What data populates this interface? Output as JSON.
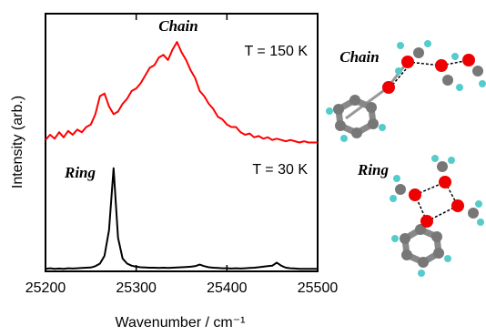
{
  "chart_data": {
    "type": "line",
    "x": [
      25200,
      25205,
      25210,
      25215,
      25220,
      25225,
      25230,
      25235,
      25240,
      25245,
      25250,
      25255,
      25260,
      25265,
      25270,
      25275,
      25280,
      25285,
      25290,
      25295,
      25300,
      25305,
      25310,
      25315,
      25320,
      25325,
      25330,
      25335,
      25340,
      25345,
      25350,
      25355,
      25360,
      25365,
      25370,
      25375,
      25380,
      25385,
      25390,
      25395,
      25400,
      25405,
      25410,
      25415,
      25420,
      25425,
      25430,
      25435,
      25440,
      25445,
      25450,
      25455,
      25460,
      25465,
      25470,
      25475,
      25480,
      25485,
      25490,
      25495,
      25500
    ],
    "series": [
      {
        "color": "#ff0000",
        "values": [
          5.1,
          5.3,
          5.15,
          5.4,
          5.2,
          5.45,
          5.3,
          5.5,
          5.4,
          5.6,
          5.7,
          6.1,
          6.8,
          6.9,
          6.4,
          6.1,
          6.2,
          6.5,
          6.7,
          7.0,
          7.1,
          7.3,
          7.6,
          7.9,
          8.0,
          8.3,
          8.4,
          8.2,
          8.6,
          8.9,
          8.5,
          8.2,
          7.8,
          7.5,
          7.0,
          6.8,
          6.5,
          6.3,
          6.0,
          5.9,
          5.7,
          5.6,
          5.6,
          5.4,
          5.3,
          5.35,
          5.2,
          5.25,
          5.15,
          5.2,
          5.1,
          5.15,
          5.1,
          5.05,
          5.1,
          5.05,
          5.0,
          5.05,
          5.0,
          5.0,
          5.0
        ]
      },
      {
        "color": "#000000",
        "values": [
          0.1,
          0.12,
          0.1,
          0.11,
          0.1,
          0.12,
          0.11,
          0.12,
          0.13,
          0.14,
          0.15,
          0.2,
          0.3,
          0.6,
          1.6,
          4.0,
          1.3,
          0.5,
          0.3,
          0.22,
          0.18,
          0.16,
          0.15,
          0.14,
          0.14,
          0.13,
          0.14,
          0.13,
          0.14,
          0.15,
          0.16,
          0.17,
          0.18,
          0.2,
          0.26,
          0.2,
          0.16,
          0.14,
          0.13,
          0.12,
          0.12,
          0.11,
          0.12,
          0.11,
          0.12,
          0.13,
          0.14,
          0.16,
          0.18,
          0.2,
          0.22,
          0.34,
          0.22,
          0.14,
          0.12,
          0.11,
          0.1,
          0.1,
          0.1,
          0.1,
          0.1
        ]
      }
    ],
    "xlim": [
      25200,
      25500
    ],
    "xticks": [
      25200,
      25300,
      25400,
      25500
    ],
    "ylim": [
      0,
      10
    ],
    "xlabel": "Wavenumber / cm⁻¹",
    "ylabel": "Intensity (arb.)",
    "annotations": [
      "Chain",
      "T = 150 K",
      "Ring",
      "T = 30 K"
    ]
  },
  "structures": [
    "Chain",
    "Ring"
  ]
}
